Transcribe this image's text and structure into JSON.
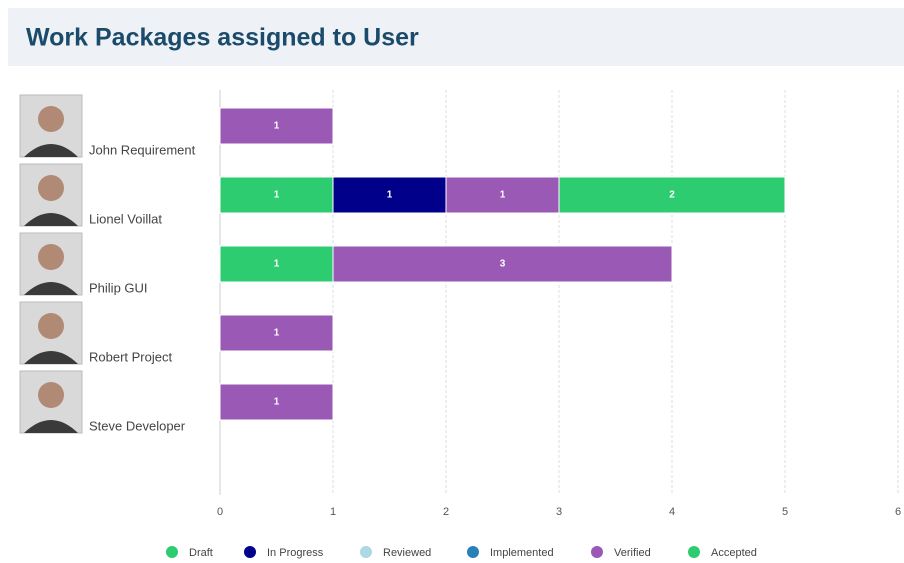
{
  "chart_data": {
    "type": "stacked-bar-horizontal",
    "title": "Work Packages assigned to User",
    "categories": [
      "John Requirement",
      "Lionel Voillat",
      "Philip GUI",
      "Robert Project",
      "Steve Developer"
    ],
    "series": [
      {
        "name": "Draft",
        "color": "#2ecc71",
        "values": [
          null,
          1,
          1,
          null,
          null
        ]
      },
      {
        "name": "In Progress",
        "color": "#00008b",
        "values": [
          null,
          1,
          null,
          null,
          null
        ]
      },
      {
        "name": "Reviewed",
        "color": "#add8e6",
        "values": [
          null,
          null,
          null,
          null,
          null
        ]
      },
      {
        "name": "Implemented",
        "color": "#2980b9",
        "values": [
          null,
          null,
          null,
          null,
          null
        ]
      },
      {
        "name": "Verified",
        "color": "#9b59b6",
        "values": [
          1,
          1,
          3,
          1,
          1
        ]
      },
      {
        "name": "Accepted",
        "color": "#2ecc71",
        "values": [
          null,
          2,
          null,
          null,
          null
        ]
      }
    ],
    "xlim": [
      0,
      6
    ],
    "xticks": [
      0,
      1,
      2,
      3,
      4,
      5,
      6
    ],
    "grid": true
  }
}
